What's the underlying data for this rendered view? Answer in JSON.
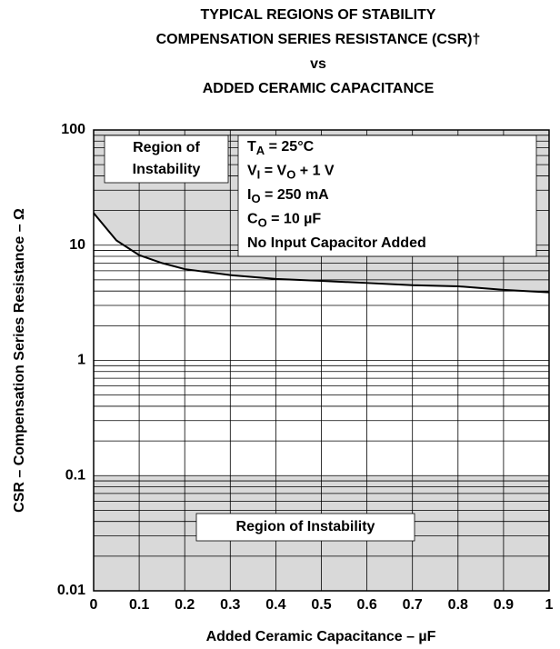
{
  "chart_data": {
    "type": "line",
    "title": [
      "TYPICAL REGIONS OF STABILITY",
      "COMPENSATION SERIES RESISTANCE (CSR)†",
      "vs",
      "ADDED CERAMIC CAPACITANCE"
    ],
    "xlabel": "Added Ceramic Capacitance – µF",
    "ylabel": "CSR – Compensation Series Resistance – Ω",
    "x": [
      0,
      0.05,
      0.1,
      0.15,
      0.2,
      0.3,
      0.4,
      0.5,
      0.6,
      0.7,
      0.8,
      0.9,
      1.0
    ],
    "series": [
      {
        "color": "#000000",
        "values": [
          19,
          11,
          8.2,
          7,
          6.2,
          5.5,
          5.1,
          4.9,
          4.7,
          4.5,
          4.4,
          4.1,
          3.9
        ]
      }
    ],
    "xlim": [
      0,
      1
    ],
    "xticks": [
      0,
      0.1,
      0.2,
      0.3,
      0.4,
      0.5,
      0.6,
      0.7,
      0.8,
      0.9,
      1
    ],
    "ylim": [
      0.01,
      100
    ],
    "yticks": [
      0.01,
      0.1,
      1,
      10,
      100
    ],
    "yscale": "log",
    "grid": true,
    "shade_color": "#d9d9d9",
    "regions": [
      {
        "label": [
          "Region of",
          "Instability"
        ],
        "bound": "above_series"
      },
      {
        "label": [
          "Region of Instability"
        ],
        "range": [
          0.01,
          0.1
        ]
      }
    ],
    "conditions": [
      [
        {
          "t": "T"
        },
        {
          "t": "A",
          "sub": true
        },
        {
          "t": " = 25°C"
        }
      ],
      [
        {
          "t": "V"
        },
        {
          "t": "I",
          "sub": true
        },
        {
          "t": " = V"
        },
        {
          "t": "O",
          "sub": true
        },
        {
          "t": " + 1 V"
        }
      ],
      [
        {
          "t": "I"
        },
        {
          "t": "O",
          "sub": true
        },
        {
          "t": " = 250 mA"
        }
      ],
      [
        {
          "t": "C"
        },
        {
          "t": "O",
          "sub": true
        },
        {
          "t": " = 10 µF"
        }
      ],
      [
        {
          "t": "No Input Capacitor Added"
        }
      ]
    ]
  }
}
